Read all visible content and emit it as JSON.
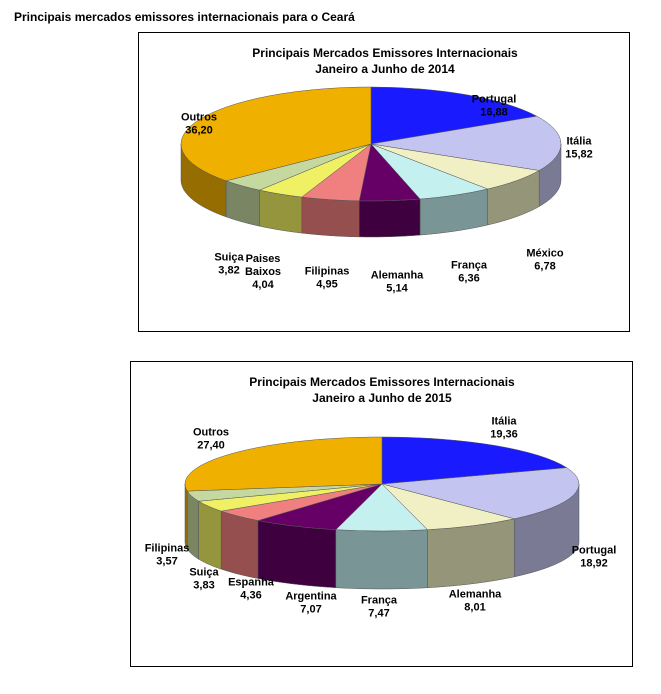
{
  "page_title": "Principais mercados emissores internacionais para o Ceará",
  "colors": {
    "portugal": "#1a1aff",
    "italia": "#c4c4f0",
    "mexico": "#f0f0c4",
    "franca": "#c4f0f0",
    "alemanha": "#660066",
    "filipinas": "#f08080",
    "paises_baixos": "#f0f064",
    "suica": "#c4d8a0",
    "outros": "#f0b000",
    "espanha": "#f08080",
    "argentina": "#660066"
  },
  "chart_data": [
    {
      "type": "pie",
      "title": "Principais Mercados Emissores Internacionais",
      "subtitle": "Janeiro a Junho de 2014",
      "slices": [
        {
          "label": "Portugal",
          "value": 16.88,
          "value_text": "16,88",
          "color": "#1a1aff"
        },
        {
          "label": "Itália",
          "value": 15.82,
          "value_text": "15,82",
          "color": "#c4c4f0"
        },
        {
          "label": "México",
          "value": 6.78,
          "value_text": "6,78",
          "color": "#f0f0c4"
        },
        {
          "label": "França",
          "value": 6.36,
          "value_text": "6,36",
          "color": "#c4f0f0"
        },
        {
          "label": "Alemanha",
          "value": 5.14,
          "value_text": "5,14",
          "color": "#660066"
        },
        {
          "label": "Filipinas",
          "value": 4.95,
          "value_text": "4,95",
          "color": "#f08080"
        },
        {
          "label": "Paises Baixos",
          "value": 4.04,
          "value_text": "4,04",
          "color": "#f0f064"
        },
        {
          "label": "Suiça",
          "value": 3.82,
          "value_text": "3,82",
          "color": "#c4d8a0"
        },
        {
          "label": "Outros",
          "value": 36.2,
          "value_text": "36,20",
          "color": "#f0b000"
        }
      ]
    },
    {
      "type": "pie",
      "title": "Principais Mercados Emissores Internacionais",
      "subtitle": "Janeiro a Junho de 2015",
      "slices": [
        {
          "label": "Itália",
          "value": 19.36,
          "value_text": "19,36",
          "color": "#1a1aff"
        },
        {
          "label": "Portugal",
          "value": 18.92,
          "value_text": "18,92",
          "color": "#c4c4f0"
        },
        {
          "label": "Alemanha",
          "value": 8.01,
          "value_text": "8,01",
          "color": "#f0f0c4"
        },
        {
          "label": "França",
          "value": 7.47,
          "value_text": "7,47",
          "color": "#c4f0f0"
        },
        {
          "label": "Argentina",
          "value": 7.07,
          "value_text": "7,07",
          "color": "#660066"
        },
        {
          "label": "Espanha",
          "value": 4.36,
          "value_text": "4,36",
          "color": "#f08080"
        },
        {
          "label": "Suiça",
          "value": 3.83,
          "value_text": "3,83",
          "color": "#f0f064"
        },
        {
          "label": "Filipinas",
          "value": 3.57,
          "value_text": "3,57",
          "color": "#c4d8a0"
        },
        {
          "label": "Outros",
          "value": 27.4,
          "value_text": "27,40",
          "color": "#f0b000"
        }
      ]
    }
  ]
}
